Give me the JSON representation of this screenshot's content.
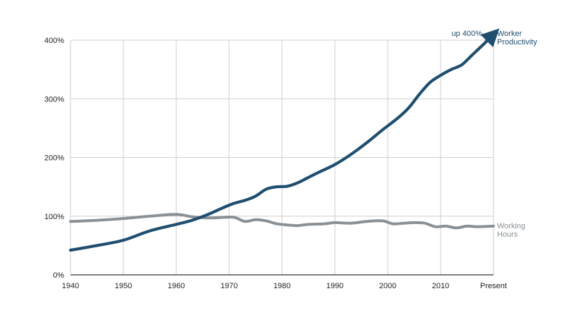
{
  "chart_data": {
    "type": "line",
    "title": "",
    "xlabel": "",
    "ylabel": "",
    "xlim": [
      1940,
      2020
    ],
    "ylim": [
      0,
      400
    ],
    "grid": true,
    "x_ticks": [
      {
        "value": 1940,
        "label": "1940"
      },
      {
        "value": 1950,
        "label": "1950"
      },
      {
        "value": 1960,
        "label": "1960"
      },
      {
        "value": 1970,
        "label": "1970"
      },
      {
        "value": 1980,
        "label": "1980"
      },
      {
        "value": 1990,
        "label": "1990"
      },
      {
        "value": 2000,
        "label": "2000"
      },
      {
        "value": 2010,
        "label": "2010"
      },
      {
        "value": 2020,
        "label": "Present"
      }
    ],
    "y_ticks": [
      {
        "value": 0,
        "label": "0%"
      },
      {
        "value": 100,
        "label": "100%"
      },
      {
        "value": 200,
        "label": "200%"
      },
      {
        "value": 300,
        "label": "300%"
      },
      {
        "value": 400,
        "label": "400%"
      }
    ],
    "series": [
      {
        "name": "Worker Productivity",
        "label_lines": [
          "Worker",
          "Productivity"
        ],
        "color": "#1f4e6f",
        "arrow": true,
        "x": [
          1940,
          1945,
          1950,
          1955,
          1960,
          1963,
          1966,
          1969,
          1971,
          1973,
          1975,
          1977,
          1979,
          1981,
          1983,
          1985,
          1987,
          1990,
          1993,
          1996,
          1999,
          2002,
          2004,
          2006,
          2008,
          2010,
          2012,
          2014,
          2016,
          2018,
          2020
        ],
        "y": [
          42,
          50,
          59,
          75,
          86,
          93,
          103,
          115,
          122,
          127,
          134,
          146,
          150,
          151,
          157,
          166,
          175,
          188,
          205,
          225,
          247,
          268,
          285,
          308,
          328,
          340,
          350,
          358,
          375,
          392,
          410
        ]
      },
      {
        "name": "Working Hours",
        "label_lines": [
          "Working",
          "Hours"
        ],
        "color": "#8a9196",
        "arrow": false,
        "x": [
          1940,
          1945,
          1950,
          1955,
          1960,
          1963,
          1966,
          1969,
          1971,
          1973,
          1975,
          1977,
          1979,
          1981,
          1983,
          1985,
          1988,
          1990,
          1993,
          1996,
          1999,
          2001,
          2003,
          2005,
          2007,
          2009,
          2011,
          2013,
          2015,
          2017,
          2020
        ],
        "y": [
          91,
          93,
          96,
          100,
          103,
          99,
          97,
          98,
          98,
          91,
          94,
          92,
          87,
          85,
          84,
          86,
          87,
          89,
          88,
          91,
          92,
          87,
          88,
          89,
          88,
          82,
          83,
          80,
          83,
          82,
          83
        ]
      }
    ],
    "annotations": [
      {
        "text": "up 400%"
      }
    ]
  }
}
